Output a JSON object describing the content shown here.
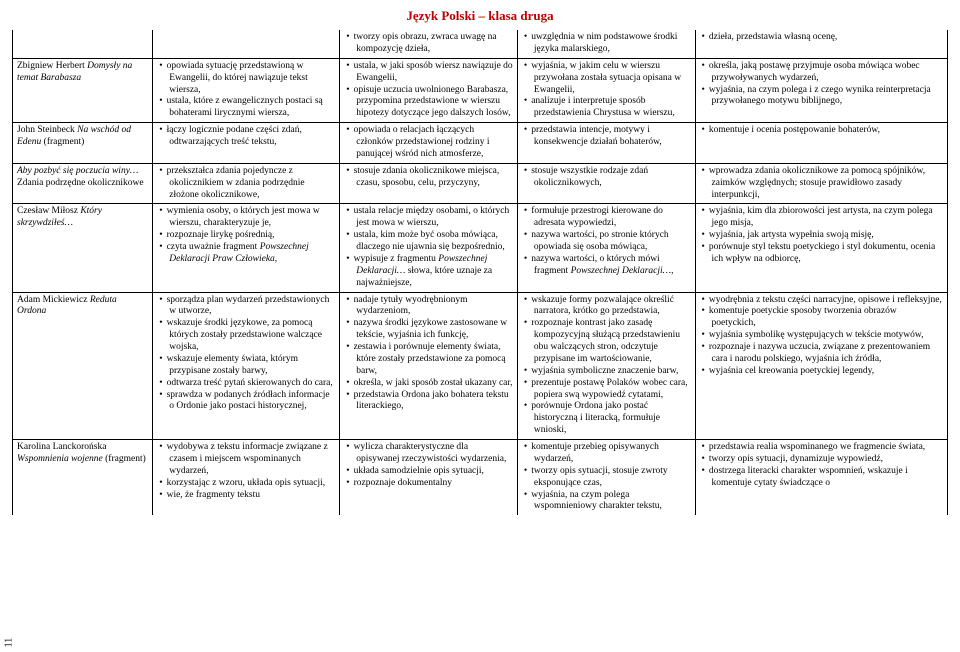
{
  "header": "Język Polski – klasa druga",
  "page_num": "11",
  "rows": [
    {
      "topic": "",
      "c1": [],
      "c2": [
        "tworzy opis obrazu, zwraca uwagę na kompozycję dzieła,"
      ],
      "c3": [
        "uwzględnia w nim podstawowe środki języka malarskiego,"
      ],
      "c4": [
        "dzieła, przedstawia własną ocenę,"
      ]
    },
    {
      "topic": "Zbigniew Herbert <em>Domysły na temat Barabasza</em>",
      "c1": [
        "opowiada sytuację przedstawioną w Ewangelii, do której nawiązuje tekst wiersza,",
        "ustala, które z ewangelicznych postaci są bohaterami lirycznymi wiersza,"
      ],
      "c2": [
        "ustala, w jaki sposób wiersz nawiązuje do Ewangelii,",
        "opisuje uczucia uwolnionego Barabasza, przypomina przedstawione w wierszu hipotezy dotyczące jego dalszych losów,"
      ],
      "c3": [
        "wyjaśnia, w jakim celu w wierszu przywołana została sytuacja opisana w Ewangelii,",
        "analizuje i interpretuje sposób przedstawienia Chrystusa w wierszu,"
      ],
      "c4": [
        "określa, jaką postawę przyjmuje osoba mówiąca wobec przywoływanych wydarzeń,",
        "wyjaśnia, na czym polega i z czego wynika reinterpretacja przywołanego motywu biblijnego,"
      ]
    },
    {
      "topic": "John Steinbeck <em>Na wschód od Edenu</em> (fragment)",
      "c1": [
        "łączy logicznie podane części zdań, odtwarzających treść tekstu,"
      ],
      "c2": [
        "opowiada o relacjach łączących członków przedstawionej rodziny i panującej wśród nich atmosferze,"
      ],
      "c3": [
        "przedstawia intencje, motywy i konsekwencje działań bohaterów,"
      ],
      "c4": [
        "komentuje i ocenia postępowanie bohaterów,"
      ]
    },
    {
      "topic": "<em>Aby pozbyć się poczucia winy…</em> Zdania podrzędne okolicznikowe",
      "c1": [
        "przekształca zdania pojedyncze z okolicznikiem w zdania podrzędnie złożone okolicznikowe,"
      ],
      "c2": [
        "stosuje zdania okolicznikowe miejsca, czasu, sposobu, celu, przyczyny,"
      ],
      "c3": [
        "stosuje wszystkie rodzaje zdań okolicznikowych,"
      ],
      "c4": [
        "wprowadza zdania okolicznikowe za pomocą spójników, zaimków względnych; stosuje prawidłowo zasady interpunkcji,"
      ]
    },
    {
      "topic": "Czesław Miłosz <em>Który skrzywdziłeś…</em>",
      "c1": [
        "wymienia osoby, o których jest mowa w wierszu, charakteryzuje je,",
        "rozpoznaje lirykę pośrednią,",
        "czyta uważnie fragment <em>Powszechnej Deklaracji Praw Człowieka</em>,"
      ],
      "c2": [
        "ustala relacje między osobami, o których jest mowa w wierszu,",
        "ustala, kim może być osoba mówiąca, dlaczego nie ujawnia się bezpośrednio,",
        "wypisuje z fragmentu <em>Powszechnej Deklaracji…</em> słowa, które uznaje za najważniejsze,"
      ],
      "c3": [
        "formułuje przestrogi kierowane do adresata wypowiedzi,",
        "nazywa wartości, po stronie których opowiada się osoba mówiąca,",
        "nazywa wartości, o których mówi fragment <em>Powszechnej Deklaracji…</em>,"
      ],
      "c4": [
        "wyjaśnia, kim dla zbiorowości jest artysta, na czym polega jego misja,",
        "wyjaśnia, jak artysta wypełnia swoją misję,",
        "porównuje styl tekstu poetyckiego i styl dokumentu, ocenia ich wpływ na odbiorcę,"
      ]
    },
    {
      "topic": "Adam Mickiewicz <em>Reduta Ordona</em>",
      "c1": [
        "sporządza plan wydarzeń przedstawionych w utworze,",
        "wskazuje środki językowe, za pomocą których zostały przedstawione walczące wojska,",
        "wskazuje elementy świata, którym przypisane zostały barwy,",
        "odtwarza treść pytań skierowanych do cara,",
        "sprawdza w podanych źródłach informacje o Ordonie jako postaci historycznej,"
      ],
      "c2": [
        "nadaje tytuły wyodrębnionym wydarzeniom,",
        "nazywa środki językowe zastosowane w tekście, wyjaśnia ich funkcję,",
        "zestawia i porównuje elementy świata, które zostały przedstawione za pomocą barw,",
        "określa, w jaki sposób został ukazany car,",
        "przedstawia Ordona jako bohatera tekstu literackiego,"
      ],
      "c3": [
        "wskazuje formy pozwalające określić narratora, krótko go przedstawia,",
        "rozpoznaje kontrast jako zasadę kompozycyjną służącą przedstawieniu obu walczących stron, odczytuje przypisane im wartościowanie,",
        "wyjaśnia symboliczne znaczenie barw,",
        "prezentuje postawę Polaków wobec cara, popiera swą wypowiedź cytatami,",
        "porównuje Ordona jako postać historyczną i literacką, formułuje wnioski,"
      ],
      "c4": [
        "wyodrębnia z tekstu części narracyjne, opisowe i refleksyjne,",
        "komentuje poetyckie sposoby tworzenia obrazów poetyckich,",
        "wyjaśnia symbolikę występujących w tekście motywów,",
        "rozpoznaje i nazywa uczucia, związane z prezentowaniem cara i narodu polskiego, wyjaśnia ich źródła,",
        "wyjaśnia cel kreowania poetyckiej legendy,"
      ]
    },
    {
      "topic": "Karolina Lanckorońska <em>Wspomnienia wojenne</em> (fragment)",
      "c1": [
        "wydobywa z tekstu informacje związane z czasem i miejscem wspominanych wydarzeń,",
        "korzystając z wzoru, układa opis sytuacji,",
        "wie, że fragmenty tekstu"
      ],
      "c2": [
        "wylicza charakterystyczne dla opisywanej rzeczywistości wydarzenia,",
        "układa samodzielnie opis sytuacji,",
        "rozpoznaje dokumentalny"
      ],
      "c3": [
        "komentuje przebieg opisywanych wydarzeń,",
        "tworzy opis sytuacji, stosuje zwroty eksponujące czas,",
        "wyjaśnia, na czym polega wspomnieniowy charakter tekstu,"
      ],
      "c4": [
        "przedstawia realia wspominanego we fragmencie świata,",
        "tworzy opis sytuacji, dynamizuje wypowiedź,",
        "dostrzega literacki charakter wspomnień, wskazuje i komentuje cytaty świadczące o"
      ]
    }
  ]
}
